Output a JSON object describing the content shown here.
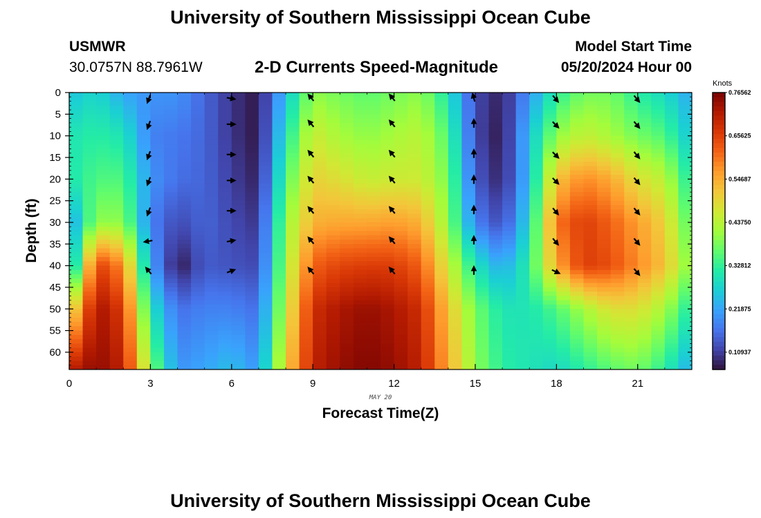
{
  "header": {
    "title": "University of Southern Mississippi Ocean Cube",
    "station": "USMWR",
    "coords": "30.0757N  88.7961W",
    "plot_title": "2-D Currents Speed-Magnitude",
    "model_label": "Model Start Time",
    "model_time": "05/20/2024 Hour 00"
  },
  "footer": {
    "title": "University of Southern Mississippi Ocean Cube"
  },
  "colors": {
    "colormap": [
      "#30123b",
      "#4145ab",
      "#4675ed",
      "#39a2fc",
      "#1bcfd4",
      "#24eca6",
      "#61fc6c",
      "#a4fc3b",
      "#d1e834",
      "#f3c63a",
      "#fe9b2d",
      "#f36315",
      "#d93806",
      "#b11901",
      "#7a0403"
    ]
  },
  "chart_data": {
    "type": "heatmap",
    "title": "2-D Currents Speed-Magnitude",
    "xlabel": "Forecast Time(Z)",
    "ylabel": "Depth (ft)",
    "date_label": "MAY 20",
    "x_ticks": [
      0,
      3,
      6,
      9,
      12,
      15,
      18,
      21
    ],
    "y_ticks": [
      0,
      5,
      10,
      15,
      20,
      25,
      30,
      35,
      40,
      45,
      50,
      55,
      60
    ],
    "xlim": [
      0,
      23
    ],
    "ylim": [
      0,
      64
    ],
    "colorbar": {
      "label": "Knots",
      "min": 0.0656,
      "max": 0.7656,
      "tick_labels": [
        "0.76562",
        "0.65625",
        "0.54687",
        "0.43750",
        "0.32812",
        "0.21875",
        "0.10937"
      ],
      "tick_values": [
        0.76562,
        0.65625,
        0.54687,
        0.4375,
        0.32812,
        0.21875,
        0.10937
      ]
    },
    "times": [
      0,
      1,
      2,
      3,
      4,
      5,
      6,
      7,
      8,
      9,
      10,
      11,
      12,
      13,
      14,
      15,
      16,
      17,
      18,
      19,
      20,
      21,
      22,
      23
    ],
    "depth_levels": [
      0,
      10,
      20,
      30,
      40,
      50,
      64
    ],
    "speed_knots": [
      [
        0.25,
        0.3,
        0.3,
        0.2,
        0.2,
        0.45,
        0.7
      ],
      [
        0.28,
        0.32,
        0.35,
        0.4,
        0.66,
        0.73,
        0.75
      ],
      [
        0.22,
        0.3,
        0.35,
        0.4,
        0.58,
        0.66,
        0.7
      ],
      [
        0.2,
        0.18,
        0.2,
        0.18,
        0.22,
        0.3,
        0.4
      ],
      [
        0.2,
        0.17,
        0.16,
        0.12,
        0.07,
        0.16,
        0.2
      ],
      [
        0.15,
        0.15,
        0.15,
        0.15,
        0.14,
        0.18,
        0.22
      ],
      [
        0.1,
        0.1,
        0.11,
        0.12,
        0.13,
        0.18,
        0.25
      ],
      [
        0.07,
        0.07,
        0.08,
        0.1,
        0.12,
        0.16,
        0.2
      ],
      [
        0.25,
        0.3,
        0.35,
        0.4,
        0.42,
        0.45,
        0.5
      ],
      [
        0.4,
        0.46,
        0.5,
        0.54,
        0.62,
        0.68,
        0.7
      ],
      [
        0.38,
        0.42,
        0.48,
        0.55,
        0.65,
        0.72,
        0.74
      ],
      [
        0.36,
        0.4,
        0.45,
        0.55,
        0.66,
        0.74,
        0.76
      ],
      [
        0.38,
        0.42,
        0.46,
        0.56,
        0.66,
        0.72,
        0.74
      ],
      [
        0.4,
        0.44,
        0.46,
        0.54,
        0.62,
        0.68,
        0.7
      ],
      [
        0.3,
        0.35,
        0.38,
        0.4,
        0.46,
        0.52,
        0.55
      ],
      [
        0.12,
        0.12,
        0.14,
        0.18,
        0.3,
        0.38,
        0.4
      ],
      [
        0.08,
        0.07,
        0.08,
        0.12,
        0.22,
        0.3,
        0.32
      ],
      [
        0.2,
        0.25,
        0.25,
        0.28,
        0.32,
        0.3,
        0.3
      ],
      [
        0.32,
        0.4,
        0.52,
        0.6,
        0.55,
        0.35,
        0.28
      ],
      [
        0.38,
        0.45,
        0.58,
        0.66,
        0.66,
        0.42,
        0.32
      ],
      [
        0.38,
        0.42,
        0.55,
        0.62,
        0.64,
        0.48,
        0.36
      ],
      [
        0.32,
        0.38,
        0.48,
        0.56,
        0.58,
        0.48,
        0.38
      ],
      [
        0.28,
        0.35,
        0.44,
        0.5,
        0.52,
        0.42,
        0.32
      ],
      [
        0.22,
        0.25,
        0.3,
        0.34,
        0.38,
        0.3,
        0.22
      ]
    ],
    "vector_times": [
      3,
      6,
      9,
      12,
      15,
      18,
      21
    ],
    "vector_depths": [
      1,
      7,
      14,
      20,
      27,
      34,
      41
    ],
    "vector_directions_deg": [
      [
        200,
        200,
        200,
        200,
        200,
        260,
        320
      ],
      [
        100,
        90,
        90,
        90,
        90,
        80,
        70
      ],
      [
        320,
        320,
        320,
        320,
        320,
        320,
        320
      ],
      [
        320,
        320,
        320,
        320,
        320,
        320,
        320
      ],
      [
        345,
        0,
        0,
        0,
        0,
        0,
        0
      ],
      [
        140,
        135,
        135,
        135,
        140,
        140,
        115
      ],
      [
        140,
        140,
        140,
        140,
        140,
        140,
        140
      ]
    ]
  }
}
